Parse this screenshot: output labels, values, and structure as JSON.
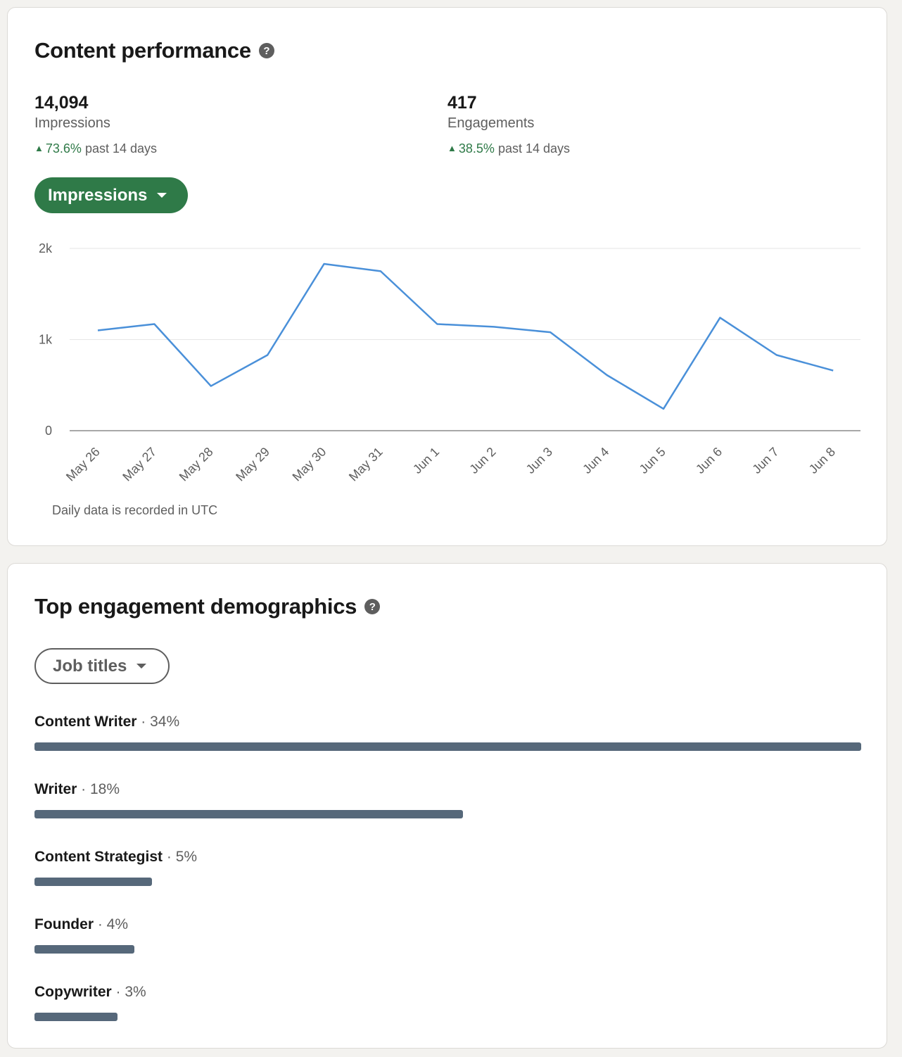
{
  "content_performance": {
    "title": "Content performance",
    "help_icon": "question-circle-icon",
    "metrics": [
      {
        "value": "14,094",
        "label": "Impressions",
        "change_pct": "73.6%",
        "change_text": "past 14 days"
      },
      {
        "value": "417",
        "label": "Engagements",
        "change_pct": "38.5%",
        "change_text": "past 14 days"
      }
    ],
    "metric_selector": "Impressions",
    "footnote": "Daily data is recorded in UTC",
    "colors": {
      "accent_green": "#2f7a48",
      "line": "#4a90d9",
      "bar": "#56687a"
    }
  },
  "chart_data": {
    "type": "line",
    "categories": [
      "May 26",
      "May 27",
      "May 28",
      "May 29",
      "May 30",
      "May 31",
      "Jun 1",
      "Jun 2",
      "Jun 3",
      "Jun 4",
      "Jun 5",
      "Jun 6",
      "Jun 7",
      "Jun 8"
    ],
    "series": [
      {
        "values": [
          1100,
          1170,
          490,
          830,
          1830,
          1750,
          1170,
          1140,
          1080,
          610,
          240,
          1240,
          830,
          660
        ]
      }
    ],
    "yticks": [
      "0",
      "1k",
      "2k"
    ],
    "ylim": [
      0,
      2000
    ],
    "grid": true,
    "legend": "none"
  },
  "demographics": {
    "title": "Top engagement demographics",
    "help_icon": "question-circle-icon",
    "selector": "Job titles",
    "separator": "·",
    "items": [
      {
        "name": "Content Writer",
        "pct": "34%",
        "fraction": 1.0
      },
      {
        "name": "Writer",
        "pct": "18%",
        "fraction": 0.518
      },
      {
        "name": "Content Strategist",
        "pct": "5%",
        "fraction": 0.142
      },
      {
        "name": "Founder",
        "pct": "4%",
        "fraction": 0.121
      },
      {
        "name": "Copywriter",
        "pct": "3%",
        "fraction": 0.1
      }
    ]
  }
}
